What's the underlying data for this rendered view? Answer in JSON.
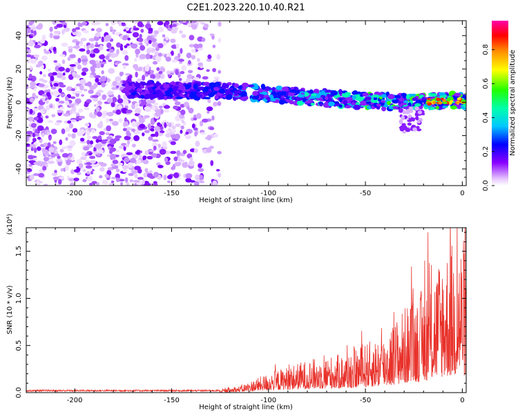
{
  "title": "C2E1.2023.220.10.40.R21",
  "chart_data": [
    {
      "type": "heatmap",
      "xlabel": "Height of straight line (km)",
      "ylabel": "Frequency (Hz)",
      "xlim": [
        -225,
        2
      ],
      "ylim": [
        -50,
        49
      ],
      "xticks": [
        -200,
        -150,
        -100,
        -50,
        0
      ],
      "xtick_labels": [
        "-200",
        "-150",
        "-100",
        "-50",
        "0"
      ],
      "yticks": [
        40,
        20,
        0,
        -20,
        -40
      ],
      "ytick_labels": [
        "40",
        "20",
        "0",
        "-20",
        "-40"
      ],
      "grid": false,
      "colorbar": {
        "label": "Normalized spectral amplitude",
        "range": [
          0,
          0.97
        ],
        "ticks": [
          0.0,
          0.2,
          0.4,
          0.6,
          0.8
        ],
        "tick_labels": [
          "0.0",
          "0.2",
          "0.4",
          "0.6",
          "0.8"
        ],
        "colormap": "hsv-like (violet-blue-cyan-green-yellow-red-magenta)"
      },
      "noise_region_x": [
        -225,
        -125
      ],
      "ridge": {
        "x": [
          -175,
          -150,
          -125,
          -100,
          -75,
          -50,
          -25,
          -10,
          0
        ],
        "y": [
          8,
          7,
          7,
          5,
          3,
          1,
          0,
          1,
          1
        ],
        "x_extent": [
          -175,
          2
        ]
      }
    },
    {
      "type": "line",
      "xlabel": "Height of straight line (km)",
      "ylabel": "SNR (10 * v/v)",
      "y_multiplier": "(x10⁴)",
      "xlim": [
        -225,
        2
      ],
      "ylim": [
        0,
        1.75
      ],
      "xticks": [
        -200,
        -150,
        -100,
        -50,
        0
      ],
      "xtick_labels": [
        "-200",
        "-150",
        "-100",
        "-50",
        "0"
      ],
      "yticks": [
        0.0,
        0.5,
        1.0,
        1.5
      ],
      "ytick_labels": [
        "0.0",
        "0.5",
        "1.0",
        "1.5"
      ],
      "grid": false,
      "series": [
        {
          "color": "#e8312a",
          "envelope_x": [
            -225,
            -125,
            -115,
            -100,
            -80,
            -60,
            -40,
            -30,
            -20,
            -10,
            0,
            2
          ],
          "envelope_y": [
            0.02,
            0.02,
            0.05,
            0.15,
            0.25,
            0.3,
            0.45,
            0.65,
            0.8,
            1.1,
            1.2,
            1.15
          ]
        }
      ]
    }
  ]
}
